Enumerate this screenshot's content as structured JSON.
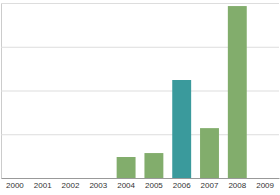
{
  "chart_data": {
    "type": "bar",
    "categories": [
      "2000",
      "2001",
      "2002",
      "2003",
      "2004",
      "2005",
      "2006",
      "2007",
      "2008",
      "2009"
    ],
    "values": [
      0,
      0,
      0,
      0,
      0.48,
      0.57,
      2.24,
      1.14,
      3.93,
      0
    ],
    "colors": [
      "#82ad6c",
      "#82ad6c",
      "#82ad6c",
      "#82ad6c",
      "#82ad6c",
      "#82ad6c",
      "#3a9a9c",
      "#82ad6c",
      "#82ad6c",
      "#82ad6c"
    ],
    "ylim": [
      0,
      4
    ],
    "yticks": [
      0,
      1,
      2,
      3,
      4
    ],
    "grid": true,
    "tick_labels": "x"
  }
}
